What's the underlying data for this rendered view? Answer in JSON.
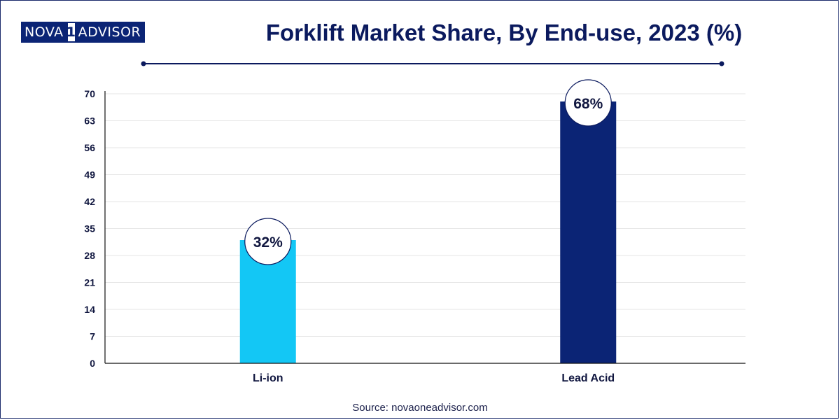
{
  "logo": {
    "part1": "NOVA",
    "part2": "1",
    "part3": "ADVISOR"
  },
  "source_text": "Source: novaoneadvisor.com",
  "colors": {
    "navy": "#0b2475",
    "cyan": "#13c7f5",
    "title": "#0b1a5e"
  },
  "chart_data": {
    "type": "bar",
    "title": "Forklift Market Share, By End-use, 2023 (%)",
    "xlabel": "",
    "ylabel": "",
    "categories": [
      "Li-ion",
      "Lead Acid"
    ],
    "values": [
      32,
      68
    ],
    "data_labels": [
      "32%",
      "68%"
    ],
    "bar_colors": [
      "#13c7f5",
      "#0b2475"
    ],
    "ylim": [
      0,
      70
    ],
    "yticks": [
      0,
      7,
      14,
      21,
      28,
      35,
      42,
      49,
      56,
      63,
      70
    ],
    "grid": true,
    "legend": "none"
  }
}
